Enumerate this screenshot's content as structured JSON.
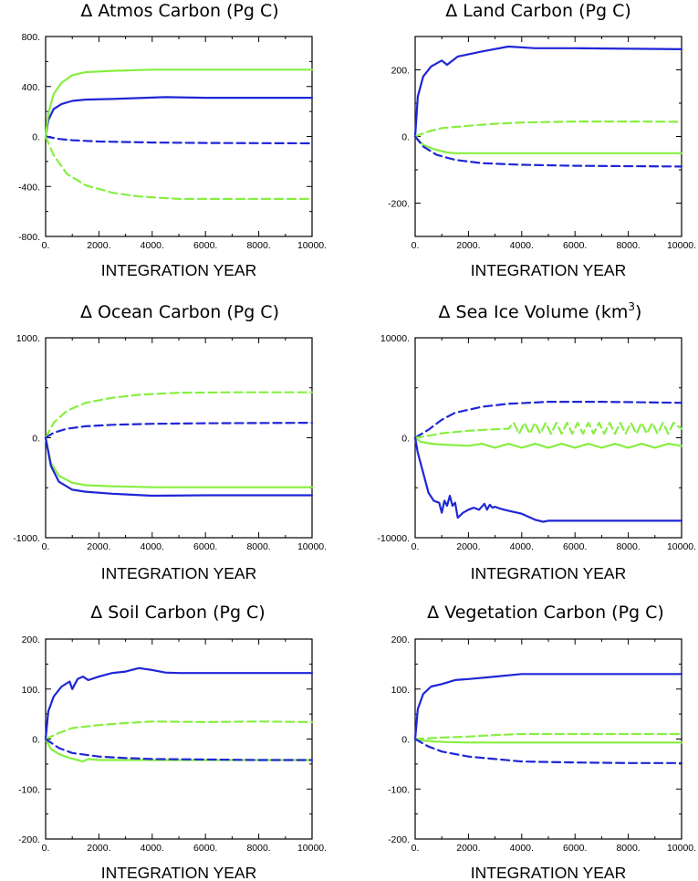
{
  "colors": {
    "blue": "#1f26d6",
    "green": "#86ef41"
  },
  "chart_data": [
    {
      "type": "line",
      "title": "Δ Atmos Carbon (Pg C)",
      "xlabel": "INTEGRATION YEAR",
      "ylabel": "",
      "xlim": [
        0,
        10000
      ],
      "ylim": [
        -800,
        800
      ],
      "x_ticks": [
        0,
        2000,
        4000,
        6000,
        8000,
        10000
      ],
      "x_tick_labels": [
        "0.",
        "2000.",
        "4000.",
        "6000.",
        "8000.",
        "10000."
      ],
      "y_ticks": [
        -800,
        -400,
        0,
        400,
        800
      ],
      "y_tick_labels": [
        "-800.",
        "-400.",
        "0.",
        "400.",
        "800."
      ],
      "series": [
        {
          "name": "blue-solid",
          "color": "blue",
          "dash": false,
          "x": [
            0,
            100,
            300,
            600,
            1000,
            1500,
            2500,
            4500,
            6000,
            10000
          ],
          "y": [
            0,
            130,
            220,
            260,
            285,
            295,
            300,
            315,
            310,
            310
          ]
        },
        {
          "name": "green-solid",
          "color": "green",
          "dash": false,
          "x": [
            0,
            100,
            300,
            600,
            1000,
            1500,
            2500,
            4000,
            6000,
            10000
          ],
          "y": [
            0,
            180,
            340,
            430,
            490,
            515,
            525,
            535,
            535,
            535
          ]
        },
        {
          "name": "blue-dashed",
          "color": "blue",
          "dash": true,
          "x": [
            0,
            500,
            1000,
            2000,
            4000,
            6000,
            10000
          ],
          "y": [
            0,
            -20,
            -30,
            -40,
            -48,
            -52,
            -55
          ]
        },
        {
          "name": "green-dashed",
          "color": "green",
          "dash": true,
          "x": [
            0,
            300,
            800,
            1500,
            2500,
            3500,
            5000,
            7000,
            10000
          ],
          "y": [
            0,
            -150,
            -300,
            -390,
            -450,
            -480,
            -500,
            -500,
            -500
          ]
        }
      ]
    },
    {
      "type": "line",
      "title": "Δ Land Carbon (Pg C)",
      "xlabel": "INTEGRATION YEAR",
      "ylabel": "",
      "xlim": [
        0,
        10000
      ],
      "ylim": [
        -300,
        300
      ],
      "x_ticks": [
        0,
        2000,
        4000,
        6000,
        8000,
        10000
      ],
      "x_tick_labels": [
        "0.",
        "2000.",
        "4000.",
        "6000.",
        "8000.",
        "10000."
      ],
      "y_ticks": [
        -200,
        0,
        200
      ],
      "y_tick_labels": [
        "-200.",
        "0.",
        "200."
      ],
      "series": [
        {
          "name": "blue-solid",
          "color": "blue",
          "dash": false,
          "x": [
            0,
            100,
            300,
            600,
            1000,
            1200,
            1600,
            2500,
            3500,
            4500,
            6000,
            10000
          ],
          "y": [
            0,
            120,
            180,
            210,
            228,
            215,
            240,
            255,
            270,
            265,
            265,
            262
          ]
        },
        {
          "name": "green-dashed",
          "color": "green",
          "dash": true,
          "x": [
            0,
            500,
            1000,
            2000,
            3000,
            4000,
            6000,
            8000,
            10000
          ],
          "y": [
            0,
            15,
            25,
            32,
            38,
            42,
            45,
            45,
            44
          ]
        },
        {
          "name": "green-solid",
          "color": "green",
          "dash": false,
          "x": [
            0,
            300,
            700,
            1200,
            1500,
            2000,
            4000,
            10000
          ],
          "y": [
            0,
            -25,
            -38,
            -48,
            -50,
            -50,
            -50,
            -50
          ]
        },
        {
          "name": "blue-dashed",
          "color": "blue",
          "dash": true,
          "x": [
            0,
            300,
            800,
            1500,
            2500,
            4000,
            6000,
            10000
          ],
          "y": [
            0,
            -30,
            -55,
            -70,
            -80,
            -85,
            -88,
            -90
          ]
        }
      ]
    },
    {
      "type": "line",
      "title": "Δ Ocean Carbon (Pg C)",
      "xlabel": "INTEGRATION YEAR",
      "ylabel": "",
      "xlim": [
        0,
        10000
      ],
      "ylim": [
        -1000,
        1000
      ],
      "x_ticks": [
        0,
        2000,
        4000,
        6000,
        8000,
        10000
      ],
      "x_tick_labels": [
        "0.",
        "2000.",
        "4000.",
        "6000.",
        "8000.",
        "10000."
      ],
      "y_ticks": [
        -1000,
        0,
        1000
      ],
      "y_tick_labels": [
        "-1000.",
        "0.",
        "1000."
      ],
      "series": [
        {
          "name": "green-dashed",
          "color": "green",
          "dash": true,
          "x": [
            0,
            300,
            800,
            1500,
            2500,
            3500,
            5000,
            7000,
            10000
          ],
          "y": [
            0,
            150,
            270,
            350,
            400,
            430,
            450,
            455,
            455
          ]
        },
        {
          "name": "blue-dashed",
          "color": "blue",
          "dash": true,
          "x": [
            0,
            300,
            800,
            1500,
            2500,
            4000,
            6000,
            10000
          ],
          "y": [
            0,
            50,
            90,
            115,
            130,
            140,
            145,
            150
          ]
        },
        {
          "name": "green-solid",
          "color": "green",
          "dash": false,
          "x": [
            0,
            200,
            500,
            1000,
            1500,
            2500,
            4000,
            10000
          ],
          "y": [
            0,
            -250,
            -380,
            -450,
            -475,
            -485,
            -495,
            -495
          ]
        },
        {
          "name": "blue-solid",
          "color": "blue",
          "dash": false,
          "x": [
            0,
            200,
            500,
            1000,
            1500,
            2500,
            4000,
            6000,
            10000
          ],
          "y": [
            0,
            -280,
            -440,
            -520,
            -540,
            -560,
            -580,
            -575,
            -575
          ]
        }
      ]
    },
    {
      "type": "line",
      "title": "Δ Sea Ice Volume (km3)",
      "xlabel": "INTEGRATION YEAR",
      "ylabel": "",
      "xlim": [
        0,
        10000
      ],
      "ylim": [
        -10000,
        10000
      ],
      "x_ticks": [
        0,
        2000,
        4000,
        6000,
        8000,
        10000
      ],
      "x_tick_labels": [
        "0.",
        "2000.",
        "4000.",
        "6000.",
        "8000.",
        "10000."
      ],
      "y_ticks": [
        -10000,
        0,
        10000
      ],
      "y_tick_labels": [
        "-10000.",
        "0.",
        "10000."
      ],
      "series": [
        {
          "name": "blue-dashed",
          "color": "blue",
          "dash": true,
          "x": [
            0,
            500,
            1000,
            1500,
            2500,
            3500,
            5000,
            7000,
            10000
          ],
          "y": [
            0,
            800,
            1800,
            2500,
            3100,
            3400,
            3600,
            3600,
            3500
          ]
        },
        {
          "name": "green-dashed",
          "color": "green",
          "dash": true,
          "x": [
            0,
            500,
            1000,
            2000,
            3000,
            3500,
            3700,
            3900,
            4100,
            4300,
            4500,
            4700,
            4900,
            5100,
            5300,
            5500,
            5700,
            5900,
            6100,
            6300,
            6500,
            6700,
            6900,
            7100,
            7300,
            7500,
            7700,
            7900,
            8100,
            8300,
            8500,
            8700,
            8900,
            9100,
            9300,
            9500,
            9700,
            10000
          ],
          "y": [
            0,
            200,
            450,
            700,
            850,
            900,
            1500,
            400,
            1500,
            400,
            1500,
            400,
            1500,
            400,
            1500,
            400,
            1500,
            400,
            1500,
            400,
            1500,
            400,
            1500,
            400,
            1500,
            400,
            1500,
            400,
            1500,
            400,
            1500,
            400,
            1500,
            400,
            1500,
            400,
            1500,
            900
          ]
        },
        {
          "name": "green-solid",
          "color": "green",
          "dash": false,
          "x": [
            0,
            200,
            500,
            800,
            1200,
            2000,
            2500,
            3000,
            3500,
            4000,
            4500,
            5000,
            5500,
            6000,
            6500,
            7000,
            7500,
            8000,
            8500,
            9000,
            9500,
            10000
          ],
          "y": [
            0,
            -400,
            -550,
            -650,
            -700,
            -800,
            -600,
            -1000,
            -600,
            -1000,
            -600,
            -1000,
            -600,
            -1000,
            -600,
            -1000,
            -600,
            -1000,
            -600,
            -1000,
            -600,
            -800
          ]
        },
        {
          "name": "blue-solid",
          "color": "blue",
          "dash": false,
          "x": [
            0,
            100,
            300,
            500,
            700,
            900,
            1000,
            1100,
            1200,
            1300,
            1400,
            1500,
            1600,
            1800,
            2000,
            2200,
            2400,
            2600,
            2700,
            2800,
            2900,
            3000,
            3200,
            3500,
            4000,
            4500,
            4800,
            5000,
            6000,
            8000,
            10000
          ],
          "y": [
            0,
            -1500,
            -3500,
            -5500,
            -6300,
            -6500,
            -7500,
            -6300,
            -6800,
            -5800,
            -6800,
            -6500,
            -8000,
            -7500,
            -7200,
            -7000,
            -7200,
            -6600,
            -7200,
            -6700,
            -7000,
            -6900,
            -7100,
            -7300,
            -7600,
            -8200,
            -8400,
            -8300,
            -8300,
            -8300,
            -8300
          ]
        }
      ]
    },
    {
      "type": "line",
      "title": "Δ Soil Carbon (Pg C)",
      "xlabel": "INTEGRATION YEAR",
      "ylabel": "",
      "xlim": [
        0,
        10000
      ],
      "ylim": [
        -200,
        200
      ],
      "x_ticks": [
        0,
        2000,
        4000,
        6000,
        8000,
        10000
      ],
      "x_tick_labels": [
        "0.",
        "2000.",
        "4000.",
        "6000.",
        "8000.",
        "10000."
      ],
      "y_ticks": [
        -200,
        -100,
        0,
        100,
        200
      ],
      "y_tick_labels": [
        "-200.",
        "-100.",
        "0.",
        "100.",
        "200."
      ],
      "series": [
        {
          "name": "blue-solid",
          "color": "blue",
          "dash": false,
          "x": [
            0,
            100,
            300,
            600,
            900,
            1000,
            1200,
            1400,
            1600,
            2000,
            2500,
            3000,
            3500,
            4000,
            4500,
            5000,
            6000,
            8000,
            10000
          ],
          "y": [
            0,
            55,
            85,
            105,
            115,
            100,
            120,
            125,
            118,
            125,
            132,
            135,
            142,
            138,
            133,
            132,
            132,
            132,
            132
          ]
        },
        {
          "name": "green-dashed",
          "color": "green",
          "dash": true,
          "x": [
            0,
            500,
            1000,
            2000,
            3000,
            4000,
            6000,
            8000,
            10000
          ],
          "y": [
            0,
            12,
            22,
            28,
            32,
            35,
            34,
            35,
            34
          ]
        },
        {
          "name": "green-solid",
          "color": "green",
          "dash": false,
          "x": [
            0,
            200,
            500,
            900,
            1200,
            1400,
            1600,
            2000,
            4000,
            10000
          ],
          "y": [
            0,
            -20,
            -30,
            -38,
            -42,
            -45,
            -40,
            -42,
            -42,
            -42
          ]
        },
        {
          "name": "blue-dashed",
          "color": "blue",
          "dash": true,
          "x": [
            0,
            500,
            1000,
            2000,
            3000,
            4000,
            6000,
            8000,
            10000
          ],
          "y": [
            0,
            -18,
            -28,
            -35,
            -38,
            -40,
            -41,
            -42,
            -42
          ]
        }
      ]
    },
    {
      "type": "line",
      "title": "Δ Vegetation Carbon (Pg C)",
      "xlabel": "INTEGRATION YEAR",
      "ylabel": "",
      "xlim": [
        0,
        10000
      ],
      "ylim": [
        -200,
        200
      ],
      "x_ticks": [
        0,
        2000,
        4000,
        6000,
        8000,
        10000
      ],
      "x_tick_labels": [
        "0.",
        "2000.",
        "4000.",
        "6000.",
        "8000.",
        "10000."
      ],
      "y_ticks": [
        -200,
        -100,
        0,
        100,
        200
      ],
      "y_tick_labels": [
        "-200.",
        "-100.",
        "0.",
        "100.",
        "200."
      ],
      "series": [
        {
          "name": "blue-solid",
          "color": "blue",
          "dash": false,
          "x": [
            0,
            100,
            300,
            600,
            1000,
            1500,
            2000,
            3000,
            4000,
            6000,
            8000,
            10000
          ],
          "y": [
            0,
            60,
            90,
            105,
            110,
            118,
            120,
            125,
            130,
            130,
            130,
            130
          ]
        },
        {
          "name": "green-dashed",
          "color": "green",
          "dash": true,
          "x": [
            0,
            1000,
            2000,
            3000,
            4000,
            6000,
            8000,
            10000
          ],
          "y": [
            0,
            3,
            5,
            8,
            10,
            10,
            10,
            10
          ]
        },
        {
          "name": "green-solid",
          "color": "green",
          "dash": false,
          "x": [
            0,
            300,
            700,
            1200,
            2000,
            4000,
            10000
          ],
          "y": [
            0,
            -3,
            -5,
            -6,
            -7,
            -7,
            -7
          ]
        },
        {
          "name": "blue-dashed",
          "color": "blue",
          "dash": true,
          "x": [
            0,
            500,
            1000,
            2000,
            3000,
            4000,
            6000,
            8000,
            10000
          ],
          "y": [
            0,
            -15,
            -25,
            -35,
            -40,
            -45,
            -47,
            -48,
            -48
          ]
        }
      ]
    }
  ]
}
